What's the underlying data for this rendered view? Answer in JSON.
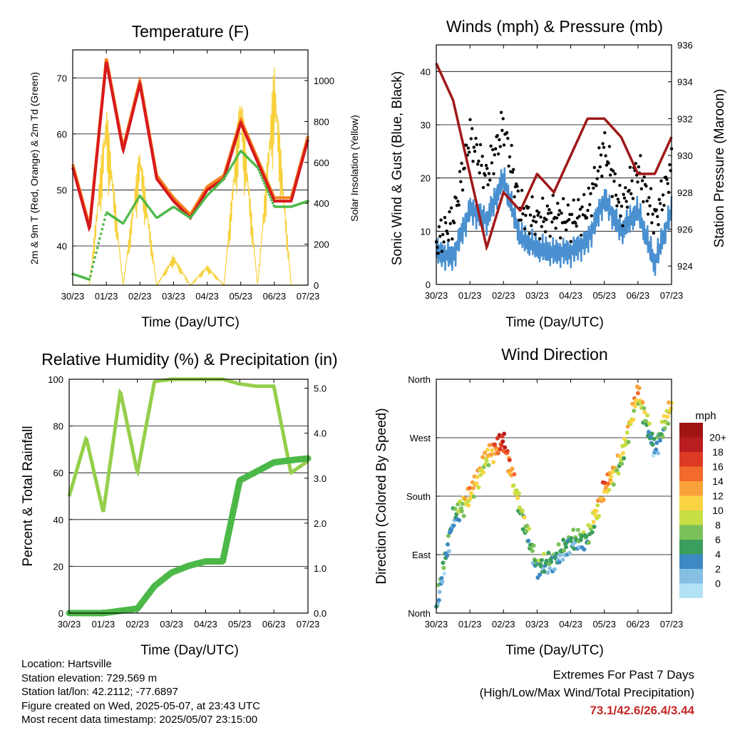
{
  "charts": {
    "temperature": {
      "title": "Temperature (F)",
      "xlabel": "Time (Day/UTC)",
      "ylabel_left": "2m & 9m T (Red, Orange) & 2m Td (Green)",
      "ylabel_right": "Solar Insolation (Yellow)",
      "x_ticks": [
        "30/23",
        "01/23",
        "02/23",
        "03/23",
        "04/23",
        "05/23",
        "06/23",
        "07/23"
      ],
      "y_left_ticks": [
        "40",
        "50",
        "60",
        "70"
      ],
      "y_right_ticks": [
        "0",
        "200",
        "400",
        "600",
        "800",
        "1000"
      ]
    },
    "winds": {
      "title": "Winds (mph) & Pressure (mb)",
      "xlabel": "Time (Day/UTC)",
      "ylabel_left": "Sonic Wind & Gust (Blue, Black)",
      "ylabel_right": "Station Pressure (Maroon)",
      "x_ticks": [
        "30/23",
        "01/23",
        "02/23",
        "03/23",
        "04/23",
        "05/23",
        "06/23",
        "07/23"
      ],
      "y_left_ticks": [
        "0",
        "10",
        "20",
        "30",
        "40"
      ],
      "y_right_ticks": [
        "924",
        "926",
        "928",
        "930",
        "932",
        "934",
        "936"
      ]
    },
    "humidity": {
      "title": "Relative Humidity (%) & Precipitation (in)",
      "xlabel": "Time (Day/UTC)",
      "ylabel_left": "Percent & Total Rainfall",
      "x_ticks": [
        "30/23",
        "01/23",
        "02/23",
        "03/23",
        "04/23",
        "05/23",
        "06/23",
        "07/23"
      ],
      "y_left_ticks": [
        "0",
        "20",
        "40",
        "60",
        "80",
        "100"
      ],
      "y_right_ticks": [
        "0.0",
        "1.0",
        "2.0",
        "3.0",
        "4.0",
        "5.0"
      ]
    },
    "direction": {
      "title": "Wind Direction",
      "xlabel": "Time (Day/UTC)",
      "ylabel_left": "Direction (Colored By Speed)",
      "x_ticks": [
        "30/23",
        "01/23",
        "02/23",
        "03/23",
        "04/23",
        "05/23",
        "06/23",
        "07/23"
      ],
      "y_left_ticks": [
        "North",
        "East",
        "South",
        "West",
        "North"
      ],
      "legend_title": "mph",
      "legend_labels": [
        "20+",
        "18",
        "16",
        "14",
        "12",
        "10",
        "8",
        "6",
        "4",
        "2",
        "0"
      ]
    }
  },
  "info": {
    "location": "Location: Hartsville",
    "elevation": "Station elevation: 729.569 m",
    "latlon": "Station lat/lon: 42.2112; -77.6897",
    "created": "Figure created on Wed, 2025-05-07, at 23:43 UTC",
    "recent": "Most recent data timestamp: 2025/05/07 23:15:00"
  },
  "extremes": {
    "line1": "Extremes For Past 7 Days",
    "line2": "(High/Low/Max Wind/Total Precipitation)",
    "value": "73.1/42.6/26.4/3.44"
  },
  "colors": {
    "temp_2m": "#d7191c",
    "temp_9m": "#f4811f",
    "dewpoint": "#4cb848",
    "solar": "#f7d13b",
    "wind": "#4a90d0",
    "gust": "#000000",
    "pressure": "#a01818",
    "rh": "#95cf4b",
    "precip": "#4cb848",
    "speed_scale": [
      "#b3e2f5",
      "#85bfe3",
      "#3d89c4",
      "#3a9e5c",
      "#7bc15a",
      "#c8de45",
      "#fbd443",
      "#f9a23c",
      "#f26a2c",
      "#dc3a23",
      "#b81d20",
      "#a01414"
    ]
  },
  "chart_data": [
    {
      "type": "line",
      "title": "Temperature (F)",
      "x": [
        0,
        0.5,
        1,
        1.5,
        2,
        2.5,
        3,
        3.5,
        4,
        4.5,
        5,
        5.5,
        6,
        6.5,
        7
      ],
      "series": [
        {
          "name": "2m T",
          "values": [
            54,
            43,
            73,
            57,
            69,
            52,
            48,
            45,
            50,
            52,
            62,
            55,
            48,
            48,
            59
          ]
        },
        {
          "name": "2m Td",
          "values": [
            35,
            34,
            46,
            44,
            49,
            45,
            47,
            45,
            49,
            52,
            57,
            54,
            47,
            47,
            48
          ]
        },
        {
          "name": "Solar Insolation",
          "values": [
            0,
            0,
            900,
            0,
            700,
            0,
            150,
            0,
            100,
            0,
            1000,
            0,
            1100,
            0,
            0
          ]
        }
      ],
      "ylim_left": [
        33,
        75
      ],
      "ylim_right": [
        0,
        1150
      ]
    },
    {
      "type": "line",
      "title": "Winds (mph) & Pressure (mb)",
      "x": [
        0,
        0.5,
        1,
        1.5,
        2,
        2.5,
        3,
        3.5,
        4,
        4.5,
        5,
        5.5,
        6,
        6.5,
        7
      ],
      "series": [
        {
          "name": "Sonic Wind",
          "values": [
            6,
            5,
            14,
            12,
            20,
            9,
            7,
            6,
            6,
            8,
            16,
            10,
            14,
            4,
            14
          ]
        },
        {
          "name": "Gust",
          "values": [
            8,
            12,
            28,
            20,
            30,
            14,
            12,
            13,
            12,
            14,
            26,
            14,
            22,
            12,
            22
          ]
        },
        {
          "name": "Station Pressure",
          "values": [
            935,
            933,
            929,
            925,
            928,
            927,
            929,
            928,
            930,
            932,
            932,
            931,
            929,
            929,
            931
          ]
        }
      ],
      "ylim_left": [
        0,
        45
      ],
      "ylim_right": [
        923,
        936
      ]
    },
    {
      "type": "line",
      "title": "Relative Humidity (%) & Precipitation (in)",
      "x": [
        0,
        0.5,
        1,
        1.5,
        2,
        2.5,
        3,
        3.5,
        4,
        4.5,
        5,
        5.5,
        6,
        6.5,
        7
      ],
      "series": [
        {
          "name": "Relative Humidity",
          "values": [
            50,
            75,
            43,
            95,
            60,
            99,
            100,
            100,
            100,
            100,
            98,
            97,
            97,
            60,
            65
          ]
        },
        {
          "name": "Total Precipitation",
          "values": [
            0,
            0,
            0,
            0.05,
            0.1,
            0.6,
            0.9,
            1.05,
            1.15,
            1.15,
            2.95,
            3.15,
            3.35,
            3.4,
            3.44
          ]
        }
      ],
      "ylim_left": [
        0,
        100
      ],
      "ylim_right": [
        0,
        5.2
      ]
    },
    {
      "type": "scatter",
      "title": "Wind Direction",
      "x": [
        0,
        0.5,
        1,
        1.5,
        2,
        2.5,
        3,
        3.5,
        4,
        4.5,
        5,
        5.5,
        6,
        6.5,
        7
      ],
      "series": [
        {
          "name": "Direction (deg)",
          "values": [
            10,
            145,
            180,
            240,
            265,
            160,
            70,
            80,
            110,
            115,
            190,
            235,
            340,
            250,
            320
          ]
        }
      ],
      "ylim_left": [
        0,
        360
      ]
    }
  ]
}
